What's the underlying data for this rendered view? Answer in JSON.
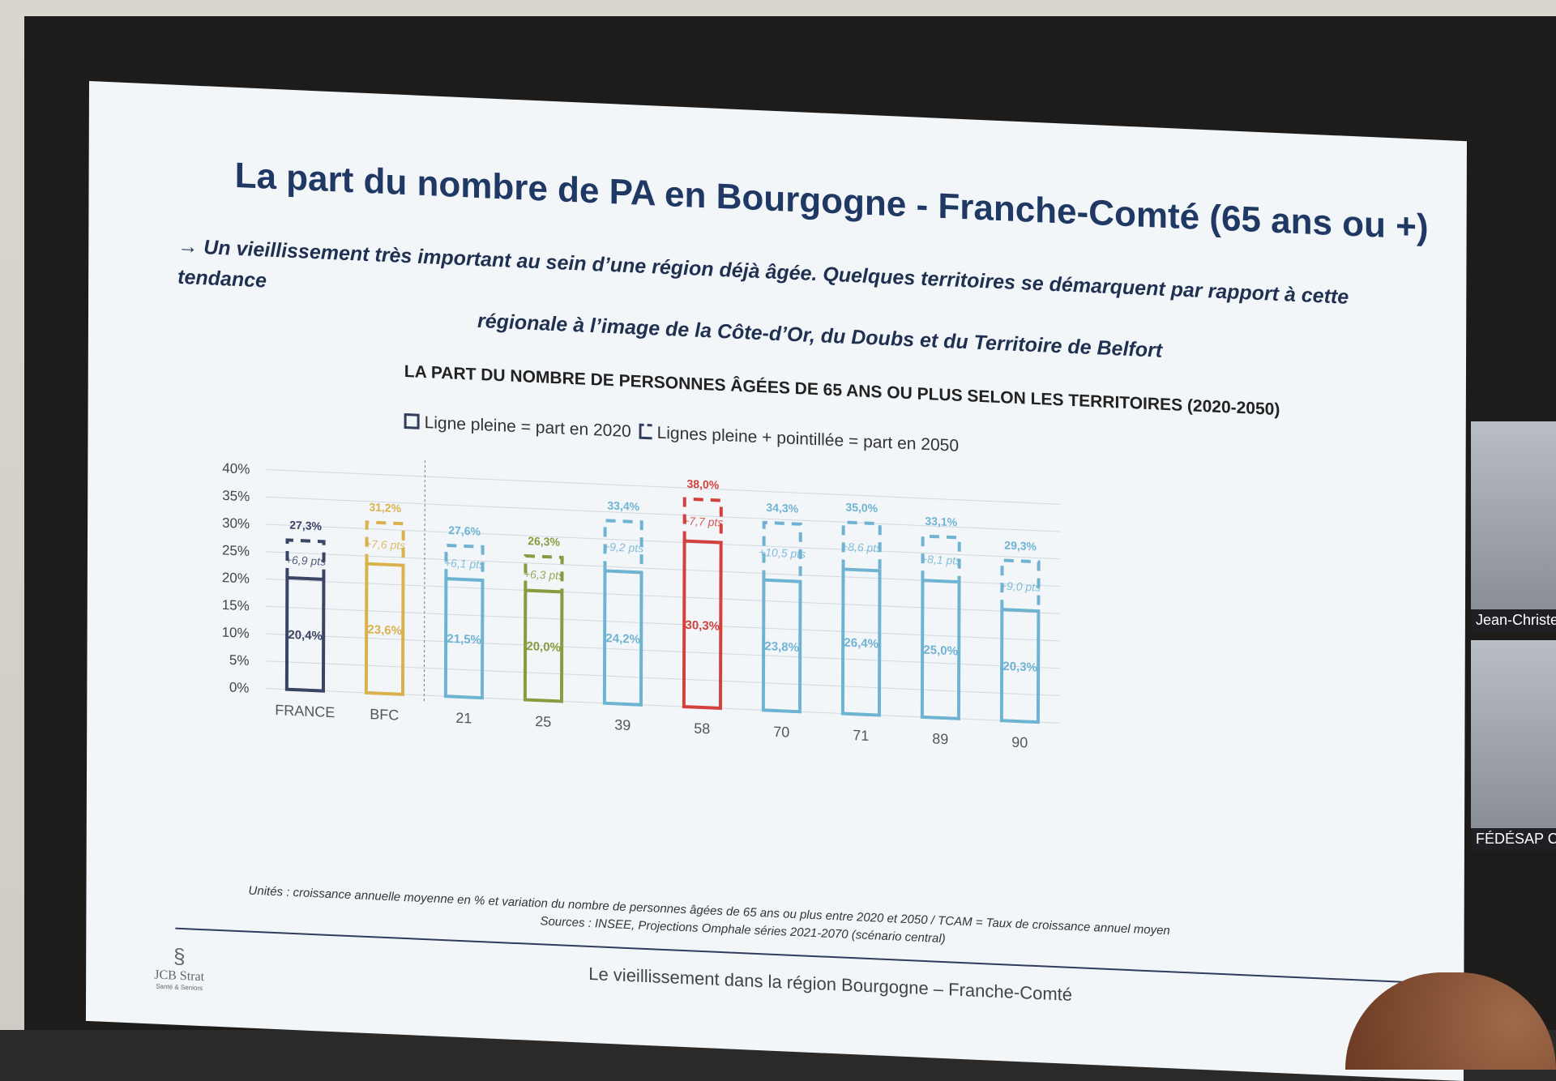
{
  "title": "La part du nombre de PA en Bourgogne - Franche-Comté (65 ans ou +)",
  "subtitle": {
    "line1": "→ Un vieillissement très important au sein d’une région déjà âgée. Quelques territoires se démarquent par rapport à cette tendance",
    "line2": "régionale à l’image de la Côte-d’Or, du Doubs et du Territoire de Belfort"
  },
  "legend": {
    "solid": "Ligne pleine = part en 2020",
    "dashed": "Lignes pleine + pointillée = part en 2050"
  },
  "chart_data": {
    "type": "bar",
    "title": "LA PART DU NOMBRE DE PERSONNES ÂGÉES DE 65 ANS OU PLUS SELON LES TERRITOIRES (2020-2050)",
    "categories": [
      "FRANCE",
      "BFC",
      "21",
      "25",
      "39",
      "58",
      "70",
      "71",
      "89",
      "90"
    ],
    "series": [
      {
        "name": "part en 2020",
        "values": [
          20.4,
          23.6,
          21.5,
          20.0,
          24.2,
          30.3,
          23.8,
          26.4,
          25.0,
          20.3
        ],
        "labels": [
          "20,4%",
          "23,6%",
          "21,5%",
          "20,0%",
          "24,2%",
          "30,3%",
          "23,8%",
          "26,4%",
          "25,0%",
          "20,3%"
        ]
      },
      {
        "name": "part en 2050",
        "values": [
          27.3,
          31.2,
          27.6,
          26.3,
          33.4,
          38.0,
          34.3,
          35.0,
          33.1,
          29.3
        ],
        "labels": [
          "27,3%",
          "31,2%",
          "27,6%",
          "26,3%",
          "33,4%",
          "38,0%",
          "34,3%",
          "35,0%",
          "33,1%",
          "29,3%"
        ]
      }
    ],
    "variation_labels": [
      "+6,9 pts",
      "+7,6 pts",
      "+6,1 pts",
      "+6,3 pts",
      "+9,2 pts",
      "+7,7 pts",
      "+10,5 pts",
      "+8,6 pts",
      "+8,1 pts",
      "+9,0 pts"
    ],
    "colors": [
      "#3a4463",
      "#d9b24d",
      "#6fb3d3",
      "#8a9a3e",
      "#6fb3d3",
      "#d2413b",
      "#6fb3d3",
      "#6fb3d3",
      "#6fb3d3",
      "#6fb3d3"
    ],
    "yticks": [
      "0%",
      "5%",
      "10%",
      "15%",
      "20%",
      "25%",
      "30%",
      "35%",
      "40%"
    ],
    "ylim": [
      0,
      40
    ],
    "grid": true
  },
  "footnote": {
    "units": "Unités : croissance annuelle moyenne en % et variation du nombre de personnes âgées de 65 ans ou plus entre 2020 et 2050 / TCAM = Taux de croissance annuel moyen",
    "sources": "Sources : INSEE, Projections Omphale séries 2021-2070 (scénario central)"
  },
  "footer": "Le vieillissement dans la région Bourgogne – Franche-Comté",
  "logo": {
    "name": "JCB Strat",
    "tagline": "Santé & Seniors"
  },
  "participants": [
    "Jean-Christe",
    "FÉDÉSAP C("
  ]
}
